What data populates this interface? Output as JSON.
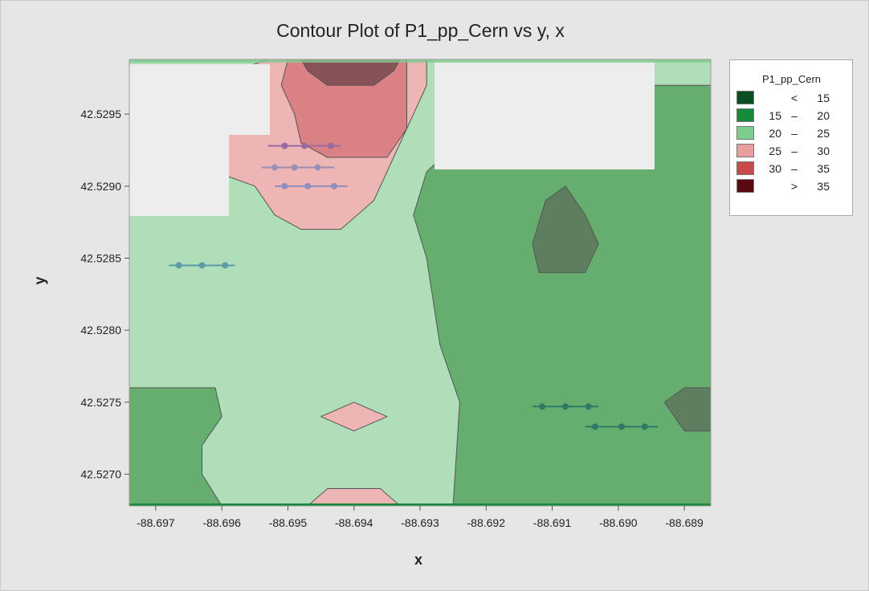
{
  "chart_data": {
    "type": "contour",
    "title": "Contour Plot of P1_pp_Cern vs y, x",
    "xlabel": "x",
    "ylabel": "y",
    "xlim": [
      -88.6974,
      -88.6886
    ],
    "ylim": [
      42.52678,
      42.52988
    ],
    "x_ticks": [
      -88.697,
      -88.696,
      -88.695,
      -88.694,
      -88.693,
      -88.692,
      -88.691,
      -88.69,
      -88.689
    ],
    "x_tick_labels": [
      "-88.697",
      "-88.696",
      "-88.695",
      "-88.694",
      "-88.693",
      "-88.692",
      "-88.691",
      "-88.690",
      "-88.689"
    ],
    "y_ticks": [
      42.527,
      42.5275,
      42.528,
      42.5285,
      42.529,
      42.5295
    ],
    "y_tick_labels": [
      "42.5270",
      "42.5275",
      "42.5280",
      "42.5285",
      "42.5290",
      "42.5295"
    ],
    "legend": {
      "title": "P1_pp_Cern",
      "placement": "right",
      "levels": [
        {
          "lo": "",
          "op": "<",
          "hi": "15",
          "color": "#0b4d22"
        },
        {
          "lo": "15",
          "op": "–",
          "hi": "20",
          "color": "#158a3a"
        },
        {
          "lo": "20",
          "op": "–",
          "hi": "25",
          "color": "#7fcc8f"
        },
        {
          "lo": "25",
          "op": "–",
          "hi": "30",
          "color": "#ea9f9f"
        },
        {
          "lo": "30",
          "op": "–",
          "hi": "35",
          "color": "#c84a4a"
        },
        {
          "lo": "",
          "op": ">",
          "hi": "35",
          "color": "#5c0a12"
        }
      ]
    },
    "regions": [
      {
        "level": "20-25",
        "shape": [
          [
            -88.6974,
            42.52678
          ],
          [
            -88.6886,
            42.52678
          ],
          [
            -88.6886,
            42.52988
          ],
          [
            -88.6974,
            42.52988
          ]
        ]
      },
      {
        "level": "15-20",
        "shape": [
          [
            -88.6925,
            42.52678
          ],
          [
            -88.6924,
            42.5275
          ],
          [
            -88.6927,
            42.5279
          ],
          [
            -88.6929,
            42.5285
          ],
          [
            -88.6931,
            42.5288
          ],
          [
            -88.6929,
            42.5291
          ],
          [
            -88.6922,
            42.5294
          ],
          [
            -88.6912,
            42.5296
          ],
          [
            -88.69,
            42.5297
          ],
          [
            -88.6886,
            42.5297
          ],
          [
            -88.6886,
            42.52678
          ]
        ]
      },
      {
        "level": "15-20",
        "shape": [
          [
            -88.6974,
            42.52678
          ],
          [
            -88.696,
            42.52678
          ],
          [
            -88.6963,
            42.527
          ],
          [
            -88.6963,
            42.5272
          ],
          [
            -88.696,
            42.5274
          ],
          [
            -88.6961,
            42.5276
          ],
          [
            -88.6974,
            42.5276
          ]
        ]
      },
      {
        "level": "<15",
        "shape": [
          [
            -88.6912,
            42.5284
          ],
          [
            -88.6905,
            42.5284
          ],
          [
            -88.6903,
            42.5286
          ],
          [
            -88.6905,
            42.5288
          ],
          [
            -88.6908,
            42.529
          ],
          [
            -88.6911,
            42.5289
          ],
          [
            -88.6913,
            42.5286
          ]
        ]
      },
      {
        "level": "<15",
        "shape": [
          [
            -88.6886,
            42.5276
          ],
          [
            -88.689,
            42.5276
          ],
          [
            -88.6893,
            42.5275
          ],
          [
            -88.689,
            42.5273
          ],
          [
            -88.6886,
            42.5273
          ]
        ]
      },
      {
        "level": "25-30",
        "shape": [
          [
            -88.6953,
            42.52988
          ],
          [
            -88.6929,
            42.52988
          ],
          [
            -88.6929,
            42.5297
          ],
          [
            -88.6933,
            42.5293
          ],
          [
            -88.6937,
            42.5289
          ],
          [
            -88.6942,
            42.5287
          ],
          [
            -88.6948,
            42.5287
          ],
          [
            -88.6952,
            42.5288
          ],
          [
            -88.6955,
            42.529
          ],
          [
            -88.6961,
            42.5291
          ],
          [
            -88.6966,
            42.5293
          ],
          [
            -88.6966,
            42.5295
          ],
          [
            -88.6962,
            42.5297
          ],
          [
            -88.6958,
            42.5298
          ]
        ]
      },
      {
        "level": "25-30",
        "shape": [
          [
            -88.6945,
            42.5274
          ],
          [
            -88.694,
            42.5275
          ],
          [
            -88.6935,
            42.5274
          ],
          [
            -88.694,
            42.5273
          ]
        ]
      },
      {
        "level": "25-30",
        "shape": [
          [
            -88.6947,
            42.52678
          ],
          [
            -88.6933,
            42.52678
          ],
          [
            -88.6936,
            42.5269
          ],
          [
            -88.694,
            42.5269
          ],
          [
            -88.6944,
            42.5269
          ]
        ]
      },
      {
        "level": "30-35",
        "shape": [
          [
            -88.695,
            42.52988
          ],
          [
            -88.6932,
            42.52988
          ],
          [
            -88.6932,
            42.5294
          ],
          [
            -88.6935,
            42.5292
          ],
          [
            -88.6944,
            42.5292
          ],
          [
            -88.6948,
            42.5293
          ],
          [
            -88.6949,
            42.5295
          ],
          [
            -88.6951,
            42.5297
          ]
        ]
      },
      {
        "level": ">35",
        "shape": [
          [
            -88.6948,
            42.52988
          ],
          [
            -88.6933,
            42.52988
          ],
          [
            -88.6934,
            42.5298
          ],
          [
            -88.6937,
            42.5297
          ],
          [
            -88.6944,
            42.5297
          ],
          [
            -88.6947,
            42.5298
          ]
        ]
      }
    ],
    "point_rows": [
      {
        "color": "#5b9ea6",
        "points": [
          [
            -88.69665,
            42.52845
          ],
          [
            -88.6963,
            42.52845
          ],
          [
            -88.69595,
            42.52845
          ]
        ],
        "line": [
          -88.6968,
          -88.6958
        ]
      },
      {
        "color": "#9b6aa1",
        "points": [
          [
            -88.69505,
            42.52928
          ],
          [
            -88.69475,
            42.52928
          ],
          [
            -88.69435,
            42.52928
          ]
        ],
        "line": [
          -88.6953,
          -88.6942
        ]
      },
      {
        "color": "#9b8fb5",
        "points": [
          [
            -88.6952,
            42.52913
          ],
          [
            -88.6949,
            42.52913
          ],
          [
            -88.69455,
            42.52913
          ]
        ],
        "line": [
          -88.6954,
          -88.6943
        ]
      },
      {
        "color": "#8e8fbf",
        "points": [
          [
            -88.69505,
            42.529
          ],
          [
            -88.6947,
            42.529
          ],
          [
            -88.6943,
            42.529
          ]
        ],
        "line": [
          -88.6952,
          -88.6941
        ]
      },
      {
        "color": "#2f7a64",
        "points": [
          [
            -88.69115,
            42.52747
          ],
          [
            -88.6908,
            42.52747
          ],
          [
            -88.69045,
            42.52747
          ]
        ],
        "line": [
          -88.6913,
          -88.6903
        ]
      },
      {
        "color": "#2f7a64",
        "points": [
          [
            -88.69035,
            42.52733
          ],
          [
            -88.68995,
            42.52733
          ],
          [
            -88.6896,
            42.52733
          ]
        ],
        "line": [
          -88.6905,
          -88.6894
        ]
      }
    ],
    "grid": false
  }
}
